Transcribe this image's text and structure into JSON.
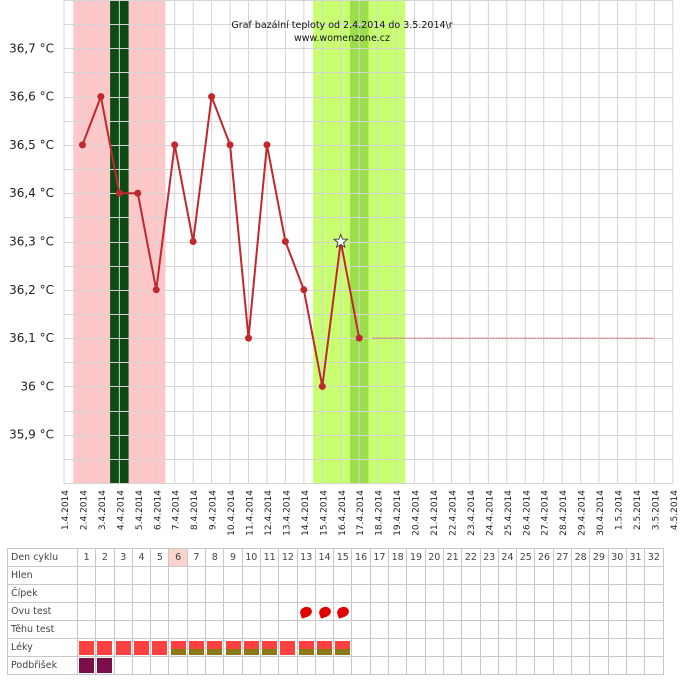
{
  "chart_data": {
    "type": "line",
    "title": "Graf bazální teploty od 2.4.2014 do 3.5.2014\\r",
    "subtitle": "www.womenzone.cz",
    "x": [
      "1.4.2014",
      "2.4.2014",
      "3.4.2014",
      "4.4.2014",
      "5.4.2014",
      "6.4.2014",
      "7.4.2014",
      "8.4.2014",
      "9.4.2014",
      "10.4.2014",
      "11.4.2014",
      "12.4.2014",
      "13.4.2014",
      "14.4.2014",
      "15.4.2014",
      "16.4.2014",
      "17.4.2014",
      "18.4.2014",
      "19.4.2014",
      "20.4.2014",
      "21.4.2014",
      "22.4.2014",
      "23.4.2014",
      "24.4.2014",
      "25.4.2014",
      "26.4.2014",
      "27.4.2014",
      "28.4.2014",
      "29.4.2014",
      "30.4.2014",
      "1.5.2014",
      "2.5.2014",
      "3.5.2014",
      "4.5.2014"
    ],
    "y_tick_labels": [
      "35,9 °C",
      "36 °C",
      "36,1 °C",
      "36,2 °C",
      "36,3 °C",
      "36,4 °C",
      "36,5 °C",
      "36,6 °C",
      "36,7 °C"
    ],
    "y_ticks": [
      35.9,
      36.0,
      36.1,
      36.2,
      36.3,
      36.4,
      36.5,
      36.6,
      36.7
    ],
    "ylim": [
      35.8,
      36.8
    ],
    "series": [
      {
        "color": "#c0282d",
        "points": [
          {
            "x": "2.4.2014",
            "y": 36.5
          },
          {
            "x": "3.4.2014",
            "y": 36.6
          },
          {
            "x": "4.4.2014",
            "y": 36.4
          },
          {
            "x": "5.4.2014",
            "y": 36.4
          },
          {
            "x": "6.4.2014",
            "y": 36.2
          },
          {
            "x": "7.4.2014",
            "y": 36.5
          },
          {
            "x": "8.4.2014",
            "y": 36.3
          },
          {
            "x": "9.4.2014",
            "y": 36.6
          },
          {
            "x": "10.4.2014",
            "y": 36.5
          },
          {
            "x": "11.4.2014",
            "y": 36.1
          },
          {
            "x": "12.4.2014",
            "y": 36.5
          },
          {
            "x": "13.4.2014",
            "y": 36.3
          },
          {
            "x": "14.4.2014",
            "y": 36.2
          },
          {
            "x": "15.4.2014",
            "y": 36.0
          },
          {
            "x": "16.4.2014",
            "y": 36.3
          },
          {
            "x": "17.4.2014",
            "y": 36.1
          }
        ],
        "star_point": "16.4.2014"
      }
    ],
    "coverline": {
      "value": 36.1,
      "from": "17.4.2014",
      "to": "3.5.2014",
      "color": "#c0282d"
    },
    "bands": [
      {
        "from": "1.4.2014",
        "to": "6.4.2014",
        "color": "#ffc7c7"
      },
      {
        "from": "3.4.2014",
        "to": "4.4.2014",
        "color": "#0b4a12"
      },
      {
        "from": "14.4.2014",
        "to": "19.4.2014",
        "color": "#c8ff70"
      },
      {
        "from": "16.4.2014",
        "to": "17.4.2014",
        "color": "#9bde4a"
      }
    ],
    "grid": true,
    "legend": "none"
  },
  "cycle_table": {
    "header_label": "Den cyklu",
    "days": [
      "1",
      "2",
      "3",
      "4",
      "5",
      "6",
      "7",
      "8",
      "9",
      "10",
      "11",
      "12",
      "13",
      "14",
      "15",
      "16",
      "17",
      "18",
      "19",
      "20",
      "21",
      "22",
      "23",
      "24",
      "25",
      "26",
      "27",
      "28",
      "29",
      "30",
      "31",
      "32"
    ],
    "highlight_day": "6",
    "rows": [
      {
        "label": "Hlen",
        "marks": []
      },
      {
        "label": "Čípek",
        "marks": []
      },
      {
        "label": "Ovu test",
        "marks": [
          "13",
          "14",
          "15"
        ],
        "mark_icon": "ovulation-test-icon",
        "mark_color": "#e00000"
      },
      {
        "label": "Těhu test",
        "marks": []
      },
      {
        "label": "Léky",
        "marks": [
          "1",
          "2",
          "3",
          "4",
          "5",
          "6",
          "7",
          "8",
          "9",
          "10",
          "11",
          "12",
          "13",
          "14",
          "15"
        ],
        "split_marks": [
          "6",
          "7",
          "8",
          "9",
          "10",
          "11",
          "13",
          "14",
          "15"
        ],
        "colors": [
          "#ff4040",
          "#8a7a14"
        ]
      },
      {
        "label": "Podbřišek",
        "marks": [
          "1",
          "2"
        ],
        "mark_color": "#7a0f4a"
      }
    ]
  }
}
